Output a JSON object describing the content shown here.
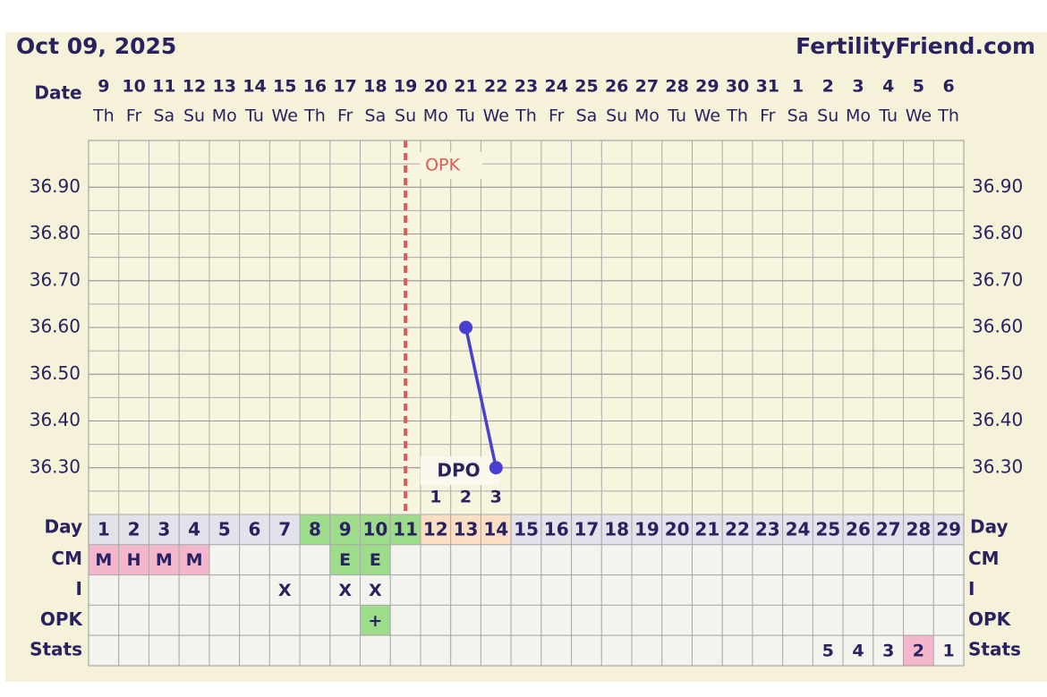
{
  "chart_data": {
    "type": "line",
    "title": "Oct 09, 2025",
    "site": "FertilityFriend.com",
    "date_label": "Date",
    "dates": [
      "9",
      "10",
      "11",
      "12",
      "13",
      "14",
      "15",
      "16",
      "17",
      "18",
      "19",
      "20",
      "21",
      "22",
      "23",
      "24",
      "25",
      "26",
      "27",
      "28",
      "29",
      "30",
      "31",
      "1",
      "2",
      "3",
      "4",
      "5",
      "6"
    ],
    "weekdays": [
      "Th",
      "Fr",
      "Sa",
      "Su",
      "Mo",
      "Tu",
      "We",
      "Th",
      "Fr",
      "Sa",
      "Su",
      "Mo",
      "Tu",
      "We",
      "Th",
      "Fr",
      "Sa",
      "Su",
      "Mo",
      "Tu",
      "We",
      "Th",
      "Fr",
      "Sa",
      "Su",
      "Mo",
      "Tu",
      "We",
      "Th"
    ],
    "day_label": "Day",
    "categories": [
      "1",
      "2",
      "3",
      "4",
      "5",
      "6",
      "7",
      "8",
      "9",
      "10",
      "11",
      "12",
      "13",
      "14",
      "15",
      "16",
      "17",
      "18",
      "19",
      "20",
      "21",
      "22",
      "23",
      "24",
      "25",
      "26",
      "27",
      "28",
      "29"
    ],
    "day_colors": [
      null,
      null,
      null,
      null,
      null,
      null,
      null,
      "#9ddc8a",
      "#9ddc8a",
      "#9ddc8a",
      "#9ddc8a",
      "#fbdfc4",
      "#fbdfc4",
      "#fbdfc4",
      null,
      null,
      null,
      null,
      null,
      null,
      null,
      null,
      null,
      null,
      null,
      null,
      null,
      null,
      null
    ],
    "series": [
      {
        "color": "#4b3fd0",
        "values": [
          null,
          null,
          null,
          null,
          null,
          null,
          null,
          null,
          null,
          null,
          null,
          null,
          36.6,
          36.3,
          null,
          null,
          null,
          null,
          null,
          null,
          null,
          null,
          null,
          null,
          null,
          null,
          null,
          null,
          null
        ]
      }
    ],
    "ylim": [
      36.2,
      37.0
    ],
    "yticks": [
      {
        "value": 36.3,
        "label": "36.30"
      },
      {
        "value": 36.4,
        "label": "36.40"
      },
      {
        "value": 36.5,
        "label": "36.50"
      },
      {
        "value": 36.6,
        "label": "36.60"
      },
      {
        "value": 36.7,
        "label": "36.70"
      },
      {
        "value": 36.8,
        "label": "36.80"
      },
      {
        "value": 36.9,
        "label": "36.90"
      }
    ],
    "grid": true,
    "opk_line": {
      "label": "OPK",
      "x": "11",
      "color": "#e05a5a"
    },
    "dpo": {
      "label": "DPO",
      "days": [
        "1",
        "2",
        "3"
      ]
    },
    "rows": [
      {
        "label": "CM",
        "cells": [
          "M",
          "H",
          "M",
          "M",
          null,
          null,
          null,
          null,
          "E",
          "E",
          null,
          null,
          null,
          null,
          null,
          null,
          null,
          null,
          null,
          null,
          null,
          null,
          null,
          null,
          null,
          null,
          null,
          null,
          null
        ],
        "colors": [
          "#f3b6cd",
          "#f3b6cd",
          "#f3b6cd",
          "#f3b6cd",
          null,
          null,
          null,
          null,
          "#9ddc8a",
          "#9ddc8a",
          null,
          null,
          null,
          null,
          null,
          null,
          null,
          null,
          null,
          null,
          null,
          null,
          null,
          null,
          null,
          null,
          null,
          null,
          null
        ]
      },
      {
        "label": "I",
        "cells": [
          null,
          null,
          null,
          null,
          null,
          null,
          "X",
          null,
          "X",
          "X",
          null,
          null,
          null,
          null,
          null,
          null,
          null,
          null,
          null,
          null,
          null,
          null,
          null,
          null,
          null,
          null,
          null,
          null,
          null
        ],
        "colors": [
          null,
          null,
          null,
          null,
          null,
          null,
          null,
          null,
          null,
          null,
          null,
          null,
          null,
          null,
          null,
          null,
          null,
          null,
          null,
          null,
          null,
          null,
          null,
          null,
          null,
          null,
          null,
          null,
          null
        ]
      },
      {
        "label": "OPK",
        "cells": [
          null,
          null,
          null,
          null,
          null,
          null,
          null,
          null,
          null,
          "+",
          null,
          null,
          null,
          null,
          null,
          null,
          null,
          null,
          null,
          null,
          null,
          null,
          null,
          null,
          null,
          null,
          null,
          null,
          null
        ],
        "colors": [
          null,
          null,
          null,
          null,
          null,
          null,
          null,
          null,
          null,
          "#9ddc8a",
          null,
          null,
          null,
          null,
          null,
          null,
          null,
          null,
          null,
          null,
          null,
          null,
          null,
          null,
          null,
          null,
          null,
          null,
          null
        ]
      },
      {
        "label": "Stats",
        "cells": [
          null,
          null,
          null,
          null,
          null,
          null,
          null,
          null,
          null,
          null,
          null,
          null,
          null,
          null,
          null,
          null,
          null,
          null,
          null,
          null,
          null,
          null,
          null,
          null,
          5,
          4,
          3,
          2,
          1
        ],
        "colors": [
          null,
          null,
          null,
          null,
          null,
          null,
          null,
          null,
          null,
          null,
          null,
          null,
          null,
          null,
          null,
          null,
          null,
          null,
          null,
          null,
          null,
          null,
          null,
          null,
          null,
          null,
          null,
          "#f3b6cd",
          null
        ]
      }
    ]
  }
}
